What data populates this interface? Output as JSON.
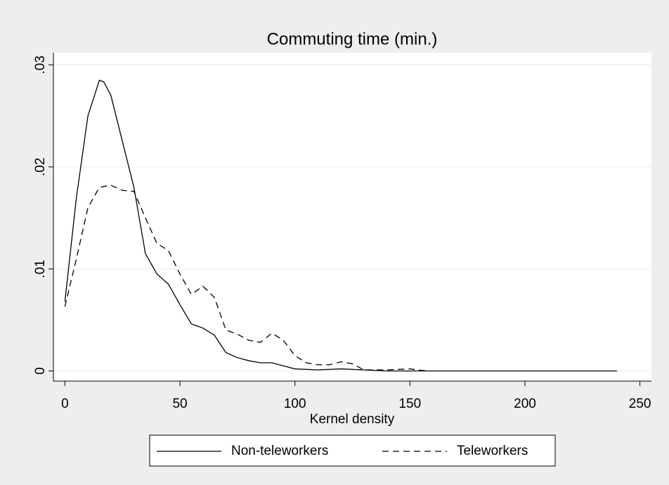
{
  "chart_data": {
    "type": "line",
    "title": "Commuting time (min.)",
    "x_label": "Kernel density",
    "xlim": [
      -5,
      255
    ],
    "xticks": [
      0,
      50,
      100,
      150,
      200,
      250
    ],
    "ylim": [
      -0.001,
      0.0312
    ],
    "yticks": [
      0,
      {
        "value": 0.01,
        "label": ".01"
      },
      {
        "value": 0.02,
        "label": ".02"
      },
      {
        "value": 0.03,
        "label": ".03"
      }
    ],
    "grid": true,
    "legend": "bottom",
    "series": [
      {
        "name": "Non-teleworkers",
        "color": "#000000",
        "dash": "solid",
        "x": [
          0,
          5,
          10,
          15,
          17,
          20,
          25,
          30,
          35,
          40,
          45,
          50,
          55,
          60,
          65,
          70,
          75,
          80,
          85,
          90,
          95,
          100,
          110,
          120,
          130,
          140,
          240
        ],
        "values": [
          0.0068,
          0.017,
          0.025,
          0.0285,
          0.0283,
          0.027,
          0.0225,
          0.018,
          0.0115,
          0.0095,
          0.0085,
          0.0065,
          0.0046,
          0.0042,
          0.0035,
          0.0018,
          0.0013,
          0.001,
          0.0008,
          0.0008,
          0.0005,
          0.0002,
          0.0001,
          0.0002,
          0.0001,
          0,
          0
        ]
      },
      {
        "name": "Teleworkers",
        "color": "#000000",
        "dash": "dashed",
        "x": [
          0,
          5,
          10,
          15,
          20,
          25,
          30,
          35,
          40,
          45,
          50,
          55,
          60,
          65,
          70,
          75,
          80,
          85,
          90,
          95,
          100,
          105,
          110,
          115,
          120,
          125,
          130,
          140,
          150,
          157
        ],
        "values": [
          0.0063,
          0.011,
          0.016,
          0.018,
          0.0182,
          0.0177,
          0.0176,
          0.015,
          0.0125,
          0.0118,
          0.0095,
          0.0075,
          0.0083,
          0.0072,
          0.004,
          0.0036,
          0.003,
          0.0028,
          0.0037,
          0.003,
          0.0015,
          0.0008,
          0.0006,
          0.0006,
          0.0009,
          0.0007,
          0.0001,
          0.0001,
          0.0002,
          0
        ]
      }
    ]
  }
}
